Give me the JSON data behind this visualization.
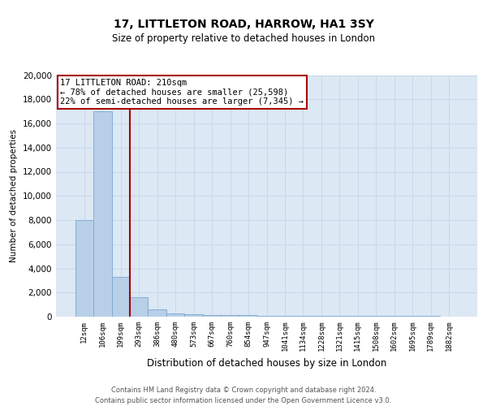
{
  "title": "17, LITTLETON ROAD, HARROW, HA1 3SY",
  "subtitle": "Size of property relative to detached houses in London",
  "xlabel": "Distribution of detached houses by size in London",
  "ylabel": "Number of detached properties",
  "annotation_title": "17 LITTLETON ROAD: 210sqm",
  "annotation_line1": "← 78% of detached houses are smaller (25,598)",
  "annotation_line2": "22% of semi-detached houses are larger (7,345) →",
  "footnote1": "Contains HM Land Registry data © Crown copyright and database right 2024.",
  "footnote2": "Contains public sector information licensed under the Open Government Licence v3.0.",
  "bin_labels": [
    "12sqm",
    "106sqm",
    "199sqm",
    "293sqm",
    "386sqm",
    "480sqm",
    "573sqm",
    "667sqm",
    "760sqm",
    "854sqm",
    "947sqm",
    "1041sqm",
    "1134sqm",
    "1228sqm",
    "1321sqm",
    "1415sqm",
    "1508sqm",
    "1602sqm",
    "1695sqm",
    "1789sqm",
    "1882sqm"
  ],
  "bar_heights": [
    8000,
    17000,
    3300,
    1600,
    600,
    280,
    200,
    160,
    140,
    120,
    100,
    90,
    80,
    70,
    60,
    55,
    50,
    45,
    40,
    35,
    30
  ],
  "vline_position": 2.5,
  "bar_color": "#b8cfe8",
  "bar_edge_color": "#7ba8d0",
  "vline_color": "#aa0000",
  "annotation_box_edgecolor": "#aa0000",
  "grid_color": "#c8d8ea",
  "bg_color": "#dce8f4",
  "ylim": [
    0,
    20000
  ],
  "yticks": [
    0,
    2000,
    4000,
    6000,
    8000,
    10000,
    12000,
    14000,
    16000,
    18000,
    20000
  ],
  "title_fontsize": 10,
  "subtitle_fontsize": 8.5
}
